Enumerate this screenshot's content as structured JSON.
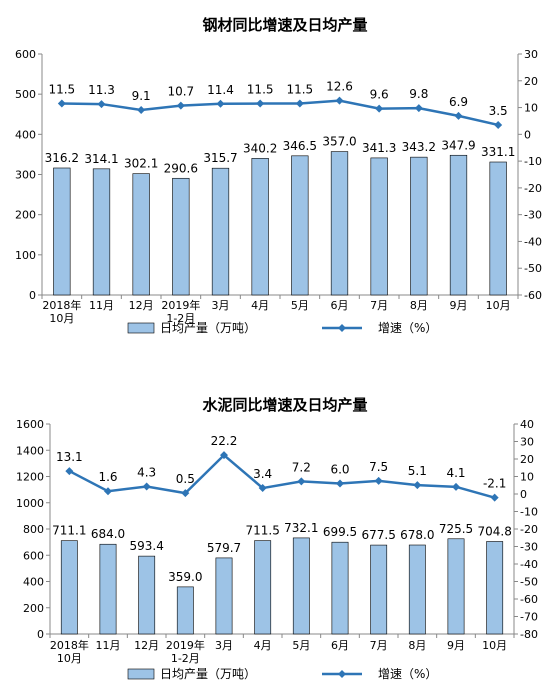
{
  "chart_data": [
    {
      "type": "bar+line",
      "title": "钢材同比增速及日均产量",
      "categories": [
        [
          "2018年",
          "10月"
        ],
        [
          "11月"
        ],
        [
          "12月"
        ],
        [
          "2019年",
          "1-2月"
        ],
        [
          "3月"
        ],
        [
          "4月"
        ],
        [
          "5月"
        ],
        [
          "6月"
        ],
        [
          "7月"
        ],
        [
          "8月"
        ],
        [
          "9月"
        ],
        [
          "10月"
        ]
      ],
      "series": [
        {
          "name": "日均产量（万吨）",
          "kind": "bar",
          "axis": "left",
          "color": "#9dc3e6",
          "values": [
            316.2,
            314.1,
            302.1,
            290.6,
            315.7,
            340.2,
            346.5,
            357.0,
            341.3,
            343.2,
            347.9,
            331.1
          ],
          "labels": [
            "316.2",
            "314.1",
            "302.1",
            "290.6",
            "315.7",
            "340.2",
            "346.5",
            "357.0",
            "341.3",
            "343.2",
            "347.9",
            "331.1"
          ]
        },
        {
          "name": "增速（%）",
          "kind": "line",
          "axis": "right",
          "color": "#2e75b6",
          "values": [
            11.5,
            11.3,
            9.1,
            10.7,
            11.4,
            11.5,
            11.5,
            12.6,
            9.6,
            9.8,
            6.9,
            3.5
          ],
          "labels": [
            "11.5",
            "11.3",
            "9.1",
            "10.7",
            "11.4",
            "11.5",
            "11.5",
            "12.6",
            "9.6",
            "9.8",
            "6.9",
            "3.5"
          ]
        }
      ],
      "left_axis": {
        "min": 0,
        "max": 600,
        "ticks": [
          "0",
          "100",
          "200",
          "300",
          "400",
          "500",
          "600"
        ]
      },
      "right_axis": {
        "min": -60,
        "max": 30,
        "ticks": [
          "-60",
          "-50",
          "-40",
          "-30",
          "-20",
          "-10",
          "0",
          "10",
          "20",
          "30"
        ]
      },
      "legend": {
        "position": "bottom",
        "bar_label": "日均产量（万吨）",
        "line_label": "增速（%）"
      },
      "grid": false
    },
    {
      "type": "bar+line",
      "title": "水泥同比增速及日均产量",
      "categories": [
        [
          "2018年",
          "10月"
        ],
        [
          "11月"
        ],
        [
          "12月"
        ],
        [
          "2019年",
          "1-2月"
        ],
        [
          "3月"
        ],
        [
          "4月"
        ],
        [
          "5月"
        ],
        [
          "6月"
        ],
        [
          "7月"
        ],
        [
          "8月"
        ],
        [
          "9月"
        ],
        [
          "10月"
        ]
      ],
      "series": [
        {
          "name": "日均产量（万吨）",
          "kind": "bar",
          "axis": "left",
          "color": "#9dc3e6",
          "values": [
            711.1,
            684.0,
            593.4,
            359.0,
            579.7,
            711.5,
            732.1,
            699.5,
            677.5,
            678.0,
            725.5,
            704.8
          ],
          "labels": [
            "711.1",
            "684.0",
            "593.4",
            "359.0",
            "579.7",
            "711.5",
            "732.1",
            "699.5",
            "677.5",
            "678.0",
            "725.5",
            "704.8"
          ]
        },
        {
          "name": "增速（%）",
          "kind": "line",
          "axis": "right",
          "color": "#2e75b6",
          "values": [
            13.1,
            1.6,
            4.3,
            0.5,
            22.2,
            3.4,
            7.2,
            6.0,
            7.5,
            5.1,
            4.1,
            -2.1
          ],
          "labels": [
            "13.1",
            "1.6",
            "4.3",
            "0.5",
            "22.2",
            "3.4",
            "7.2",
            "6.0",
            "7.5",
            "5.1",
            "4.1",
            "-2.1"
          ]
        }
      ],
      "left_axis": {
        "min": 0,
        "max": 1600,
        "ticks": [
          "0",
          "200",
          "400",
          "600",
          "800",
          "1000",
          "1200",
          "1400",
          "1600"
        ]
      },
      "right_axis": {
        "min": -80,
        "max": 40,
        "ticks": [
          "-80",
          "-70",
          "-60",
          "-50",
          "-40",
          "-30",
          "-20",
          "-10",
          "0",
          "10",
          "20",
          "30",
          "40"
        ]
      },
      "legend": {
        "position": "bottom",
        "bar_label": "日均产量（万吨）",
        "line_label": "增速（%）"
      },
      "grid": false
    }
  ]
}
